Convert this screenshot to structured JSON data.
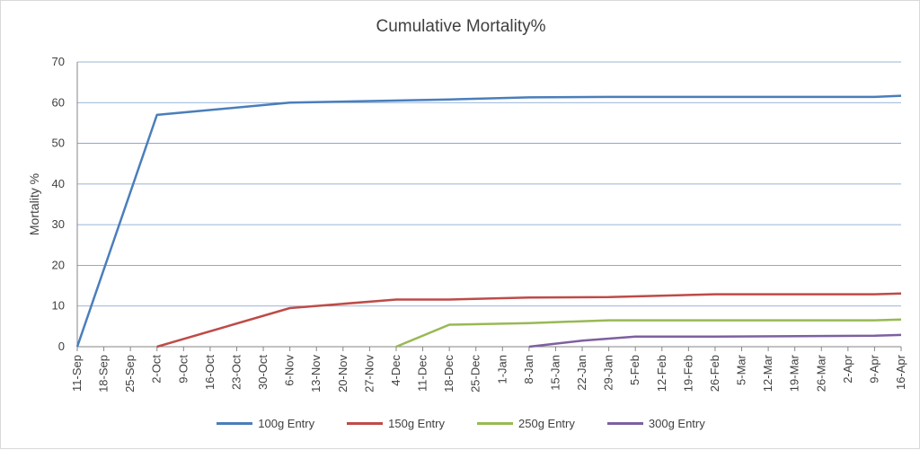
{
  "chart_data": {
    "type": "line",
    "title": "Cumulative Mortality%",
    "ylabel": "Mortality %",
    "xlabel": "",
    "ylim": [
      0,
      70
    ],
    "yticks": [
      0,
      10,
      20,
      30,
      40,
      50,
      60,
      70
    ],
    "grid": true,
    "legend_position": "bottom",
    "x_ticks": [
      "11-Sep",
      "18-Sep",
      "25-Sep",
      "2-Oct",
      "9-Oct",
      "16-Oct",
      "23-Oct",
      "30-Oct",
      "6-Nov",
      "13-Nov",
      "20-Nov",
      "27-Nov",
      "4-Dec",
      "11-Dec",
      "18-Dec",
      "25-Dec",
      "1-Jan",
      "8-Jan",
      "15-Jan",
      "22-Jan",
      "29-Jan",
      "5-Feb",
      "12-Feb",
      "19-Feb",
      "26-Feb",
      "5-Mar",
      "12-Mar",
      "19-Mar",
      "26-Mar",
      "2-Apr",
      "9-Apr",
      "16-Apr"
    ],
    "series": [
      {
        "name": "100g Entry",
        "color": "#4a7ebb",
        "points": [
          {
            "x": "11-Sep",
            "y": 0
          },
          {
            "x": "2-Oct",
            "y": 57
          },
          {
            "x": "6-Nov",
            "y": 60
          },
          {
            "x": "18-Dec",
            "y": 60.8
          },
          {
            "x": "8-Jan",
            "y": 61.3
          },
          {
            "x": "29-Jan",
            "y": 61.4
          },
          {
            "x": "26-Feb",
            "y": 61.4
          },
          {
            "x": "9-Apr",
            "y": 61.4
          },
          {
            "x": "16-Apr",
            "y": 61.7
          }
        ]
      },
      {
        "name": "150g Entry",
        "color": "#be4b48",
        "points": [
          {
            "x": "2-Oct",
            "y": 0
          },
          {
            "x": "6-Nov",
            "y": 9.5
          },
          {
            "x": "4-Dec",
            "y": 11.6
          },
          {
            "x": "18-Dec",
            "y": 11.6
          },
          {
            "x": "8-Jan",
            "y": 12.1
          },
          {
            "x": "29-Jan",
            "y": 12.2
          },
          {
            "x": "26-Feb",
            "y": 12.9
          },
          {
            "x": "9-Apr",
            "y": 12.9
          },
          {
            "x": "16-Apr",
            "y": 13.1
          }
        ]
      },
      {
        "name": "250g Entry",
        "color": "#98b954",
        "points": [
          {
            "x": "4-Dec",
            "y": 0
          },
          {
            "x": "18-Dec",
            "y": 5.4
          },
          {
            "x": "8-Jan",
            "y": 5.8
          },
          {
            "x": "29-Jan",
            "y": 6.5
          },
          {
            "x": "9-Apr",
            "y": 6.5
          },
          {
            "x": "16-Apr",
            "y": 6.7
          }
        ]
      },
      {
        "name": "300g Entry",
        "color": "#7d60a0",
        "points": [
          {
            "x": "8-Jan",
            "y": 0
          },
          {
            "x": "22-Jan",
            "y": 1.5
          },
          {
            "x": "5-Feb",
            "y": 2.5
          },
          {
            "x": "26-Feb",
            "y": 2.5
          },
          {
            "x": "9-Apr",
            "y": 2.7
          },
          {
            "x": "16-Apr",
            "y": 2.9
          }
        ]
      }
    ]
  }
}
